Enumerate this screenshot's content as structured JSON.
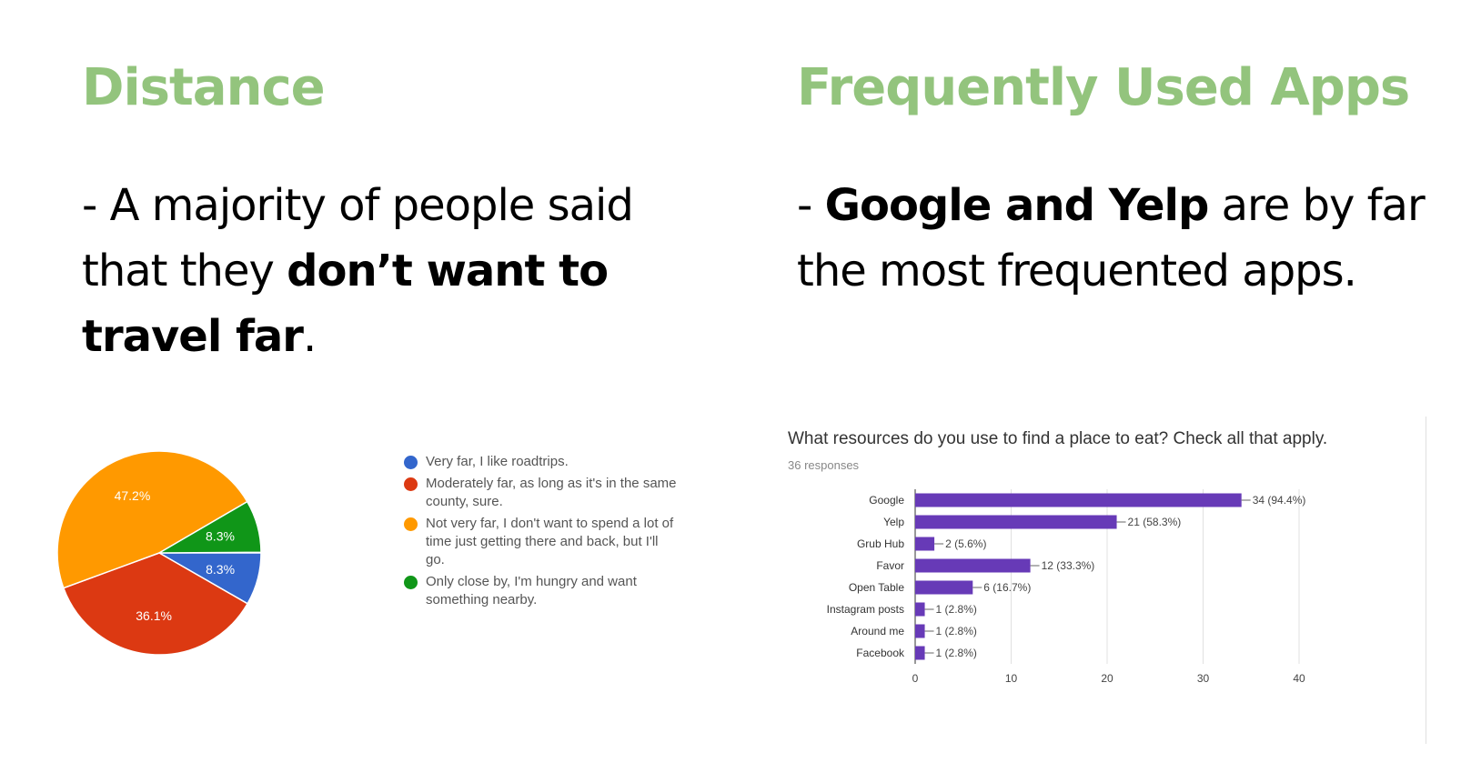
{
  "left": {
    "heading": "Distance",
    "text_prefix": "- A majority of people said that they ",
    "text_bold": "don’t want to travel far",
    "text_suffix": "."
  },
  "right": {
    "heading": "Frequently Used Apps",
    "text_prefix": "- ",
    "text_bold": "Google and Yelp",
    "text_suffix": " are by far the most frequented apps."
  },
  "colors": {
    "heading": "#93c47d",
    "bar": "#673ab7"
  },
  "chart_data": [
    {
      "type": "pie",
      "slices": [
        {
          "label": "Very far, I like roadtrips.",
          "percent": 8.3,
          "value_label": "8.3%",
          "color": "#3366cc"
        },
        {
          "label": "Moderately far, as long as it's in the same county, sure.",
          "percent": 36.1,
          "value_label": "36.1%",
          "color": "#dc3912"
        },
        {
          "label": "Not very far, I don't want to spend a lot of time just getting there and back, but I'll go.",
          "percent": 47.2,
          "value_label": "47.2%",
          "color": "#ff9900"
        },
        {
          "label": "Only close by, I'm hungry and want something nearby.",
          "percent": 8.3,
          "value_label": "8.3%",
          "color": "#109618"
        }
      ],
      "legend_position": "right"
    },
    {
      "type": "bar",
      "orientation": "horizontal",
      "title": "What resources do you use to find a place to eat? Check all that apply.",
      "subtitle": "36 responses",
      "categories": [
        "Google",
        "Yelp",
        "Grub Hub",
        "Favor",
        "Open Table",
        "Instagram posts",
        "Around me",
        "Facebook"
      ],
      "values": [
        34,
        21,
        2,
        12,
        6,
        1,
        1,
        1
      ],
      "value_labels": [
        "34 (94.4%)",
        "21 (58.3%)",
        "2 (5.6%)",
        "12 (33.3%)",
        "6 (16.7%)",
        "1 (2.8%)",
        "1 (2.8%)",
        "1 (2.8%)"
      ],
      "xlim": [
        0,
        40
      ],
      "xticks": [
        0,
        10,
        20,
        30,
        40
      ],
      "grid": true
    }
  ]
}
